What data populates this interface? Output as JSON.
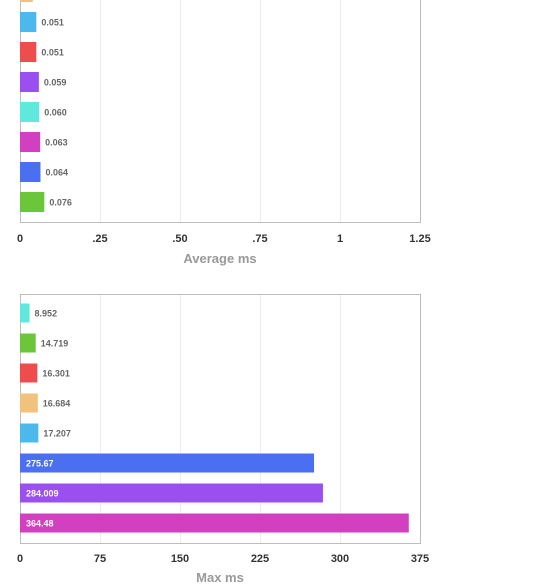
{
  "chart_data": [
    {
      "type": "bar",
      "orientation": "horizontal",
      "xlabel": "Average ms",
      "xlim": [
        0,
        1.25
      ],
      "tick_values": [
        0,
        0.25,
        0.5,
        0.75,
        1,
        1.25
      ],
      "tick_labels": [
        "0",
        ".25",
        ".50",
        ".75",
        "1",
        "1.25"
      ],
      "bars": [
        {
          "label": "",
          "value": 0.04,
          "color": "#f0c27b"
        },
        {
          "label": "0.051",
          "value": 0.051,
          "color": "#4db8ec"
        },
        {
          "label": "0.051",
          "value": 0.051,
          "color": "#ee4d4d"
        },
        {
          "label": "0.059",
          "value": 0.059,
          "color": "#9b4ff0"
        },
        {
          "label": "0.060",
          "value": 0.06,
          "color": "#5fe8dc"
        },
        {
          "label": "0.063",
          "value": 0.063,
          "color": "#d23fc0"
        },
        {
          "label": "0.064",
          "value": 0.064,
          "color": "#4a6ff0"
        },
        {
          "label": "0.076",
          "value": 0.076,
          "color": "#6cc63a"
        }
      ]
    },
    {
      "type": "bar",
      "orientation": "horizontal",
      "xlabel": "Max ms",
      "xlim": [
        0,
        375
      ],
      "tick_values": [
        0,
        75,
        150,
        225,
        300,
        375
      ],
      "tick_labels": [
        "0",
        "75",
        "150",
        "225",
        "300",
        "375"
      ],
      "bars": [
        {
          "label": "8.952",
          "value": 8.952,
          "color": "#5fe8dc"
        },
        {
          "label": "14.719",
          "value": 14.719,
          "color": "#6cc63a"
        },
        {
          "label": "16.301",
          "value": 16.301,
          "color": "#ee4d4d"
        },
        {
          "label": "16.684",
          "value": 16.684,
          "color": "#f0c27b"
        },
        {
          "label": "17.207",
          "value": 17.207,
          "color": "#4db8ec"
        },
        {
          "label": "275.67",
          "value": 275.67,
          "color": "#4a6ff0"
        },
        {
          "label": "284.009",
          "value": 284.009,
          "color": "#9b4ff0"
        },
        {
          "label": "364.48",
          "value": 364.48,
          "color": "#d23fc0"
        }
      ]
    }
  ]
}
